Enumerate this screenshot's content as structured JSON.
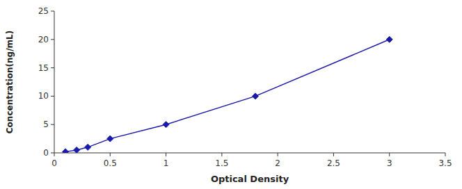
{
  "chart_data": {
    "type": "line",
    "x": [
      0.1,
      0.2,
      0.3,
      0.5,
      1.0,
      1.8,
      3.0
    ],
    "values": [
      0.2,
      0.5,
      1.0,
      2.5,
      5.0,
      10.0,
      20.0
    ],
    "color": "#1a1aaa",
    "marker": "diamond",
    "line_style": "solid",
    "xlabel": "Optical Density",
    "ylabel": "Concentration(ng/mL)",
    "xlim": [
      0,
      3.5
    ],
    "ylim": [
      0,
      25
    ],
    "xticks": [
      0,
      0.5,
      1,
      1.5,
      2,
      2.5,
      3,
      3.5
    ],
    "yticks": [
      0,
      5,
      10,
      15,
      20,
      25
    ],
    "grid": false
  }
}
